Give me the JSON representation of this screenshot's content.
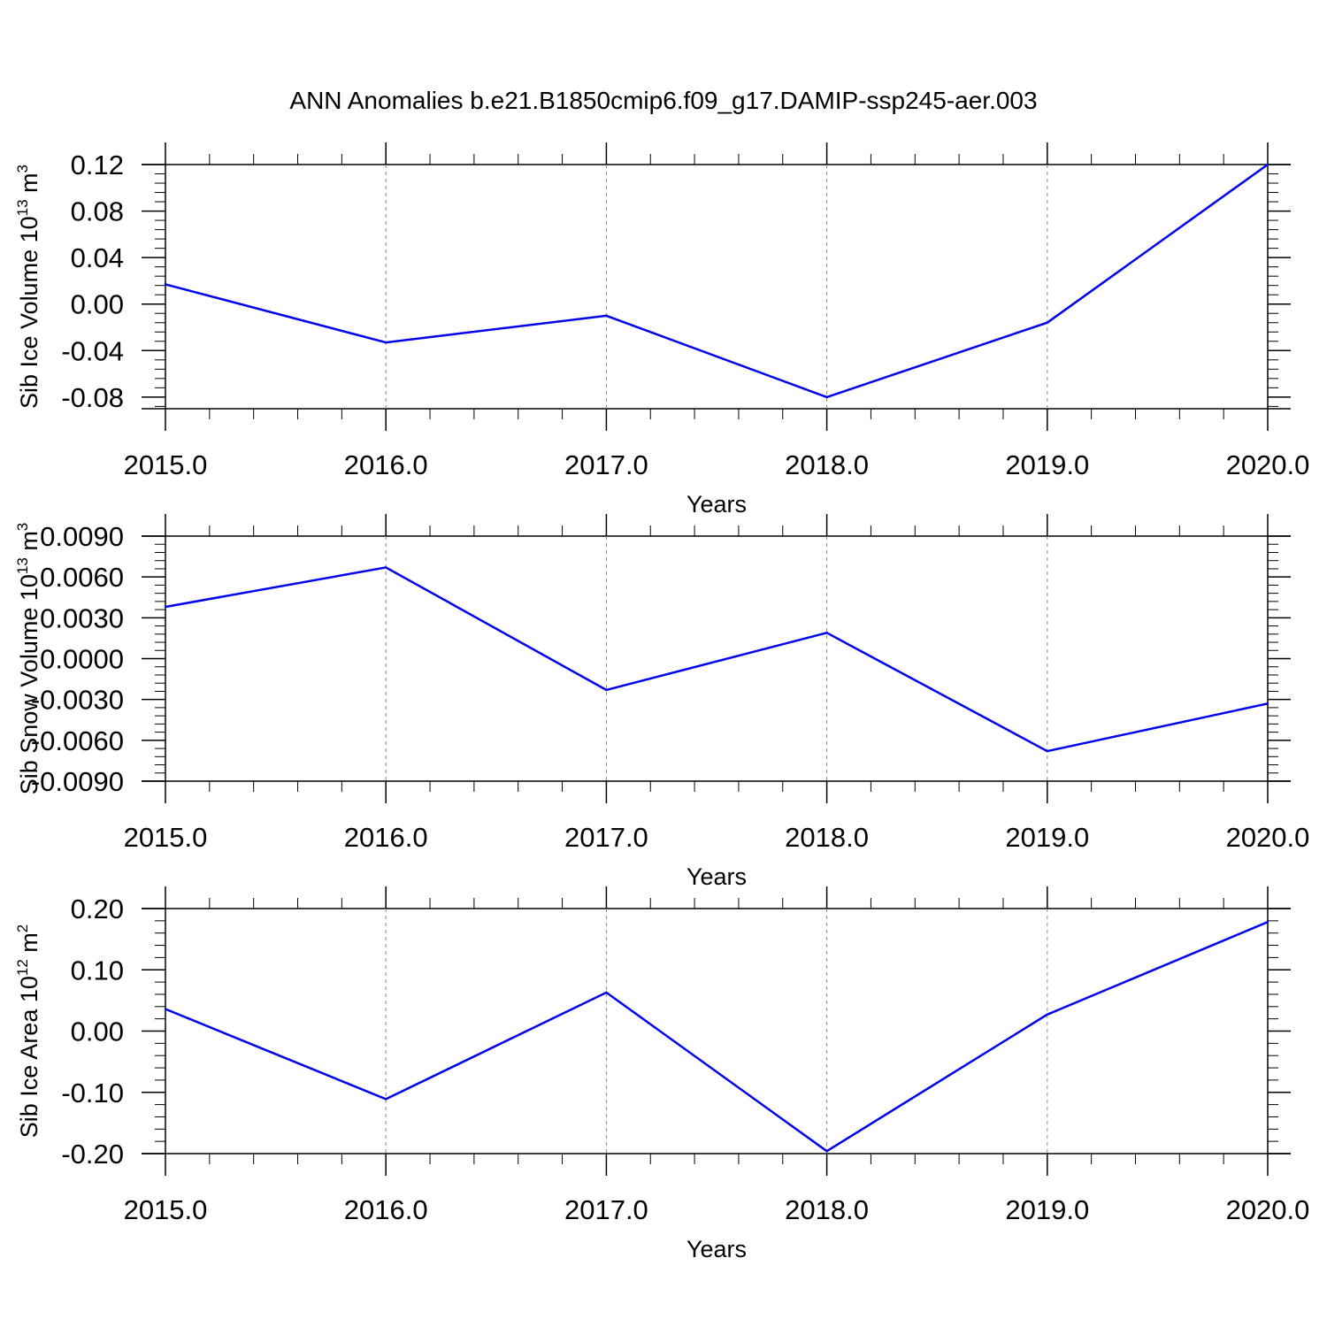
{
  "title": "ANN Anomalies b.e21.B1850cmip6.f09_g17.DAMIP-ssp245-aer.003",
  "line_color": "#0000ee",
  "chart_data": [
    {
      "type": "line",
      "ylabel": "Sib Ice Volume 10",
      "ylabel_sup1": "13",
      "ylabel_unit": " m",
      "ylabel_sup2": "3",
      "xlabel": "Years",
      "xlim": [
        2015,
        2020
      ],
      "ylim": [
        -0.09,
        0.12
      ],
      "yticks": [
        0.12,
        0.08,
        0.04,
        0.0,
        -0.04,
        -0.08
      ],
      "ytick_labels": [
        "0.12",
        "0.08",
        "0.04",
        "0.00",
        "-0.04",
        "-0.08"
      ],
      "xticks": [
        2015,
        2016,
        2017,
        2018,
        2019,
        2020
      ],
      "xtick_labels": [
        "2015.0",
        "2016.0",
        "2017.0",
        "2018.0",
        "2019.0",
        "2020.0"
      ],
      "x": [
        2015,
        2016,
        2017,
        2018,
        2019,
        2020
      ],
      "y": [
        0.017,
        -0.033,
        -0.01,
        -0.08,
        -0.016,
        0.12
      ],
      "grid": "vertical dashed at major x ticks"
    },
    {
      "type": "line",
      "ylabel": "Sib Snow Volume 10",
      "ylabel_sup1": "13",
      "ylabel_unit": " m",
      "ylabel_sup2": "3",
      "xlabel": "Years",
      "xlim": [
        2015,
        2020
      ],
      "ylim": [
        -0.009,
        0.009
      ],
      "yticks": [
        0.009,
        0.006,
        0.003,
        0.0,
        -0.003,
        -0.006,
        -0.009
      ],
      "ytick_labels": [
        "0.0090",
        "0.0060",
        "0.0030",
        "0.0000",
        "-0.0030",
        "-0.0060",
        "-0.0090"
      ],
      "xticks": [
        2015,
        2016,
        2017,
        2018,
        2019,
        2020
      ],
      "xtick_labels": [
        "2015.0",
        "2016.0",
        "2017.0",
        "2018.0",
        "2019.0",
        "2020.0"
      ],
      "x": [
        2015,
        2016,
        2017,
        2018,
        2019,
        2020
      ],
      "y": [
        0.0038,
        0.0067,
        -0.0023,
        0.0019,
        -0.0068,
        -0.0033
      ],
      "grid": "vertical dashed at major x ticks"
    },
    {
      "type": "line",
      "ylabel": "Sib Ice Area 10",
      "ylabel_sup1": "12",
      "ylabel_unit": " m",
      "ylabel_sup2": "2",
      "xlabel": "Years",
      "xlim": [
        2015,
        2020
      ],
      "ylim": [
        -0.2,
        0.2
      ],
      "yticks": [
        0.2,
        0.1,
        0.0,
        -0.1,
        -0.2
      ],
      "ytick_labels": [
        "0.20",
        "0.10",
        "0.00",
        "-0.10",
        "-0.20"
      ],
      "xticks": [
        2015,
        2016,
        2017,
        2018,
        2019,
        2020
      ],
      "xtick_labels": [
        "2015.0",
        "2016.0",
        "2017.0",
        "2018.0",
        "2019.0",
        "2020.0"
      ],
      "x": [
        2015,
        2016,
        2017,
        2018,
        2019,
        2020
      ],
      "y": [
        0.036,
        -0.111,
        0.063,
        -0.196,
        0.027,
        0.178
      ],
      "grid": "vertical dashed at major x ticks"
    }
  ]
}
